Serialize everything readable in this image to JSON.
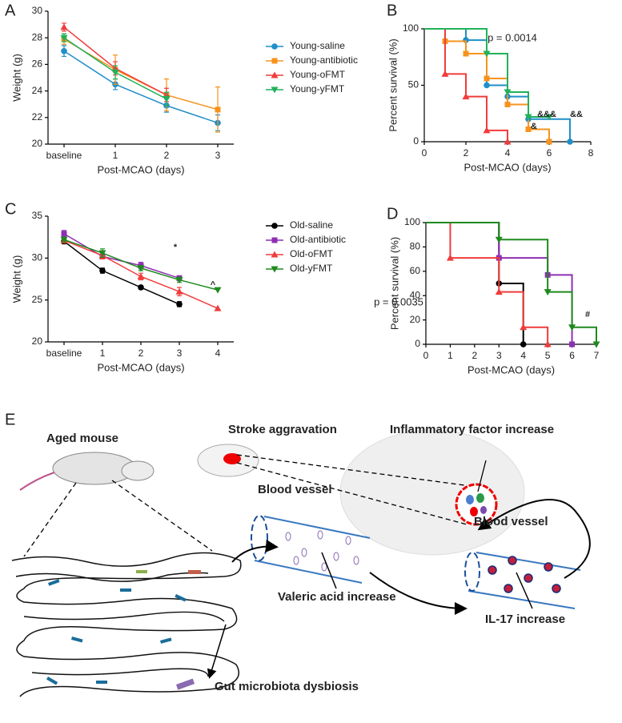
{
  "chart_data": [
    {
      "panel": "A",
      "type": "line",
      "xlabel": "Post-MCAO (days)",
      "ylabel": "Weight (g)",
      "categories": [
        "baseline",
        "1",
        "2",
        "3"
      ],
      "ylim": [
        20,
        30
      ],
      "yticks": [
        20,
        22,
        24,
        26,
        28,
        30
      ],
      "legend": true,
      "series": [
        {
          "name": "Young-saline",
          "color": "#1f8fc9",
          "marker": "circle",
          "values": [
            27.0,
            24.5,
            22.9,
            21.6
          ],
          "errors": [
            0.4,
            0.4,
            0.5,
            0.6
          ]
        },
        {
          "name": "Young-antibiotic",
          "color": "#f7931e",
          "marker": "square",
          "values": [
            27.9,
            25.6,
            23.7,
            22.6
          ],
          "errors": [
            0.4,
            1.1,
            1.2,
            1.7
          ]
        },
        {
          "name": "Young-oFMT",
          "color": "#f03c3c",
          "marker": "triangle",
          "values": [
            28.8,
            25.7,
            23.7,
            null
          ],
          "errors": [
            0.3,
            0.5,
            0.5,
            null
          ]
        },
        {
          "name": "Young-yFMT",
          "color": "#21b15a",
          "marker": "triangle-down",
          "values": [
            28.0,
            25.4,
            23.4,
            null
          ],
          "errors": [
            0.3,
            0.5,
            0.5,
            null
          ]
        }
      ]
    },
    {
      "panel": "B",
      "type": "step",
      "xlabel": "Post-MCAO (days)",
      "ylabel": "Percent survival (%)",
      "xlim": [
        0,
        8
      ],
      "xticks": [
        0,
        2,
        4,
        6,
        8
      ],
      "ylim": [
        0,
        100
      ],
      "yticks": [
        0,
        50,
        100
      ],
      "legend": false,
      "annotations": [
        {
          "text": "p = 0.0014",
          "color": "#000000"
        },
        {
          "text": "&&&",
          "color": "#21b15a"
        },
        {
          "text": "&&",
          "color": "#1f8fc9"
        },
        {
          "text": "&",
          "color": "#f7931e"
        }
      ],
      "series": [
        {
          "color": "#1f8fc9",
          "marker": "circle",
          "x": [
            0,
            2,
            3,
            4,
            5,
            7
          ],
          "values": [
            100,
            90,
            50,
            40,
            20,
            0
          ]
        },
        {
          "color": "#f7931e",
          "marker": "square",
          "x": [
            0,
            1,
            2,
            3,
            4,
            5,
            6
          ],
          "values": [
            100,
            89,
            78,
            56,
            33,
            11,
            0
          ]
        },
        {
          "color": "#f03c3c",
          "marker": "triangle",
          "x": [
            0,
            1,
            2,
            3,
            4
          ],
          "values": [
            100,
            60,
            40,
            10,
            0
          ]
        },
        {
          "color": "#21b15a",
          "marker": "triangle-down",
          "x": [
            0,
            3,
            4,
            5,
            6
          ],
          "values": [
            100,
            78,
            44,
            22,
            22
          ]
        }
      ]
    },
    {
      "panel": "C",
      "type": "line",
      "xlabel": "Post-MCAO (days)",
      "ylabel": "Weight (g)",
      "categories": [
        "baseline",
        "1",
        "2",
        "3",
        "4"
      ],
      "ylim": [
        20,
        35
      ],
      "yticks": [
        20,
        25,
        30,
        35
      ],
      "legend": true,
      "annotations": [
        {
          "text": "*",
          "color": "#8e2fb3"
        },
        {
          "text": "^",
          "color": "#1e8a1e"
        }
      ],
      "series": [
        {
          "name": "Old-saline",
          "color": "#000000",
          "marker": "circle",
          "values": [
            32.0,
            28.5,
            26.5,
            24.5,
            null
          ],
          "errors": [
            0.3,
            0.3,
            0.2,
            0.3,
            null
          ]
        },
        {
          "name": "Old-antibiotic",
          "color": "#8e2fb3",
          "marker": "square",
          "values": [
            32.9,
            30.2,
            29.1,
            27.6,
            null
          ],
          "errors": [
            0.4,
            0.3,
            0.4,
            0.3,
            null
          ]
        },
        {
          "name": "Old-oFMT",
          "color": "#f03c3c",
          "marker": "triangle",
          "values": [
            32.1,
            30.3,
            27.8,
            26.0,
            24.0
          ],
          "errors": [
            0.3,
            0.4,
            0.4,
            0.5,
            null
          ]
        },
        {
          "name": "Old-yFMT",
          "color": "#1e8a1e",
          "marker": "triangle-down",
          "values": [
            32.2,
            30.6,
            28.8,
            27.4,
            26.2
          ],
          "errors": [
            0.3,
            0.5,
            0.3,
            0.3,
            null
          ]
        }
      ]
    },
    {
      "panel": "D",
      "type": "step",
      "xlabel": "Post-MCAO (days)",
      "ylabel": "Percent survival (%)",
      "xlim": [
        0,
        7
      ],
      "xticks": [
        0,
        1,
        2,
        3,
        4,
        5,
        6,
        7
      ],
      "ylim": [
        0,
        100
      ],
      "yticks": [
        0,
        20,
        40,
        60,
        80,
        100
      ],
      "legend": false,
      "annotations": [
        {
          "text": "p = 0.0035",
          "color": "#000000"
        },
        {
          "text": "#",
          "color": "#1e8a1e"
        }
      ],
      "series": [
        {
          "color": "#000000",
          "marker": "circle",
          "x": [
            0,
            3,
            4
          ],
          "values": [
            100,
            50,
            0
          ]
        },
        {
          "color": "#8e2fb3",
          "marker": "square",
          "x": [
            0,
            3,
            5,
            6
          ],
          "values": [
            100,
            71,
            57,
            0
          ]
        },
        {
          "color": "#f03c3c",
          "marker": "triangle",
          "x": [
            0,
            1,
            3,
            4,
            5
          ],
          "values": [
            100,
            71,
            43,
            14,
            0
          ]
        },
        {
          "color": "#1e8a1e",
          "marker": "triangle-down",
          "x": [
            0,
            3,
            5,
            6,
            7
          ],
          "values": [
            100,
            86,
            43,
            14,
            0
          ]
        }
      ]
    }
  ],
  "diagram": {
    "panel": "E",
    "aged_mouse": "Aged mouse",
    "stroke": "Stroke aggravation",
    "inflammatory": "Inflammatory factor increase",
    "blood_vessel_1": "Blood vessel",
    "blood_vessel_2": "Blood vessel",
    "valeric": "Valeric acid increase",
    "il17": "IL-17 increase",
    "gut": "Gut microbiota dysbiosis"
  }
}
